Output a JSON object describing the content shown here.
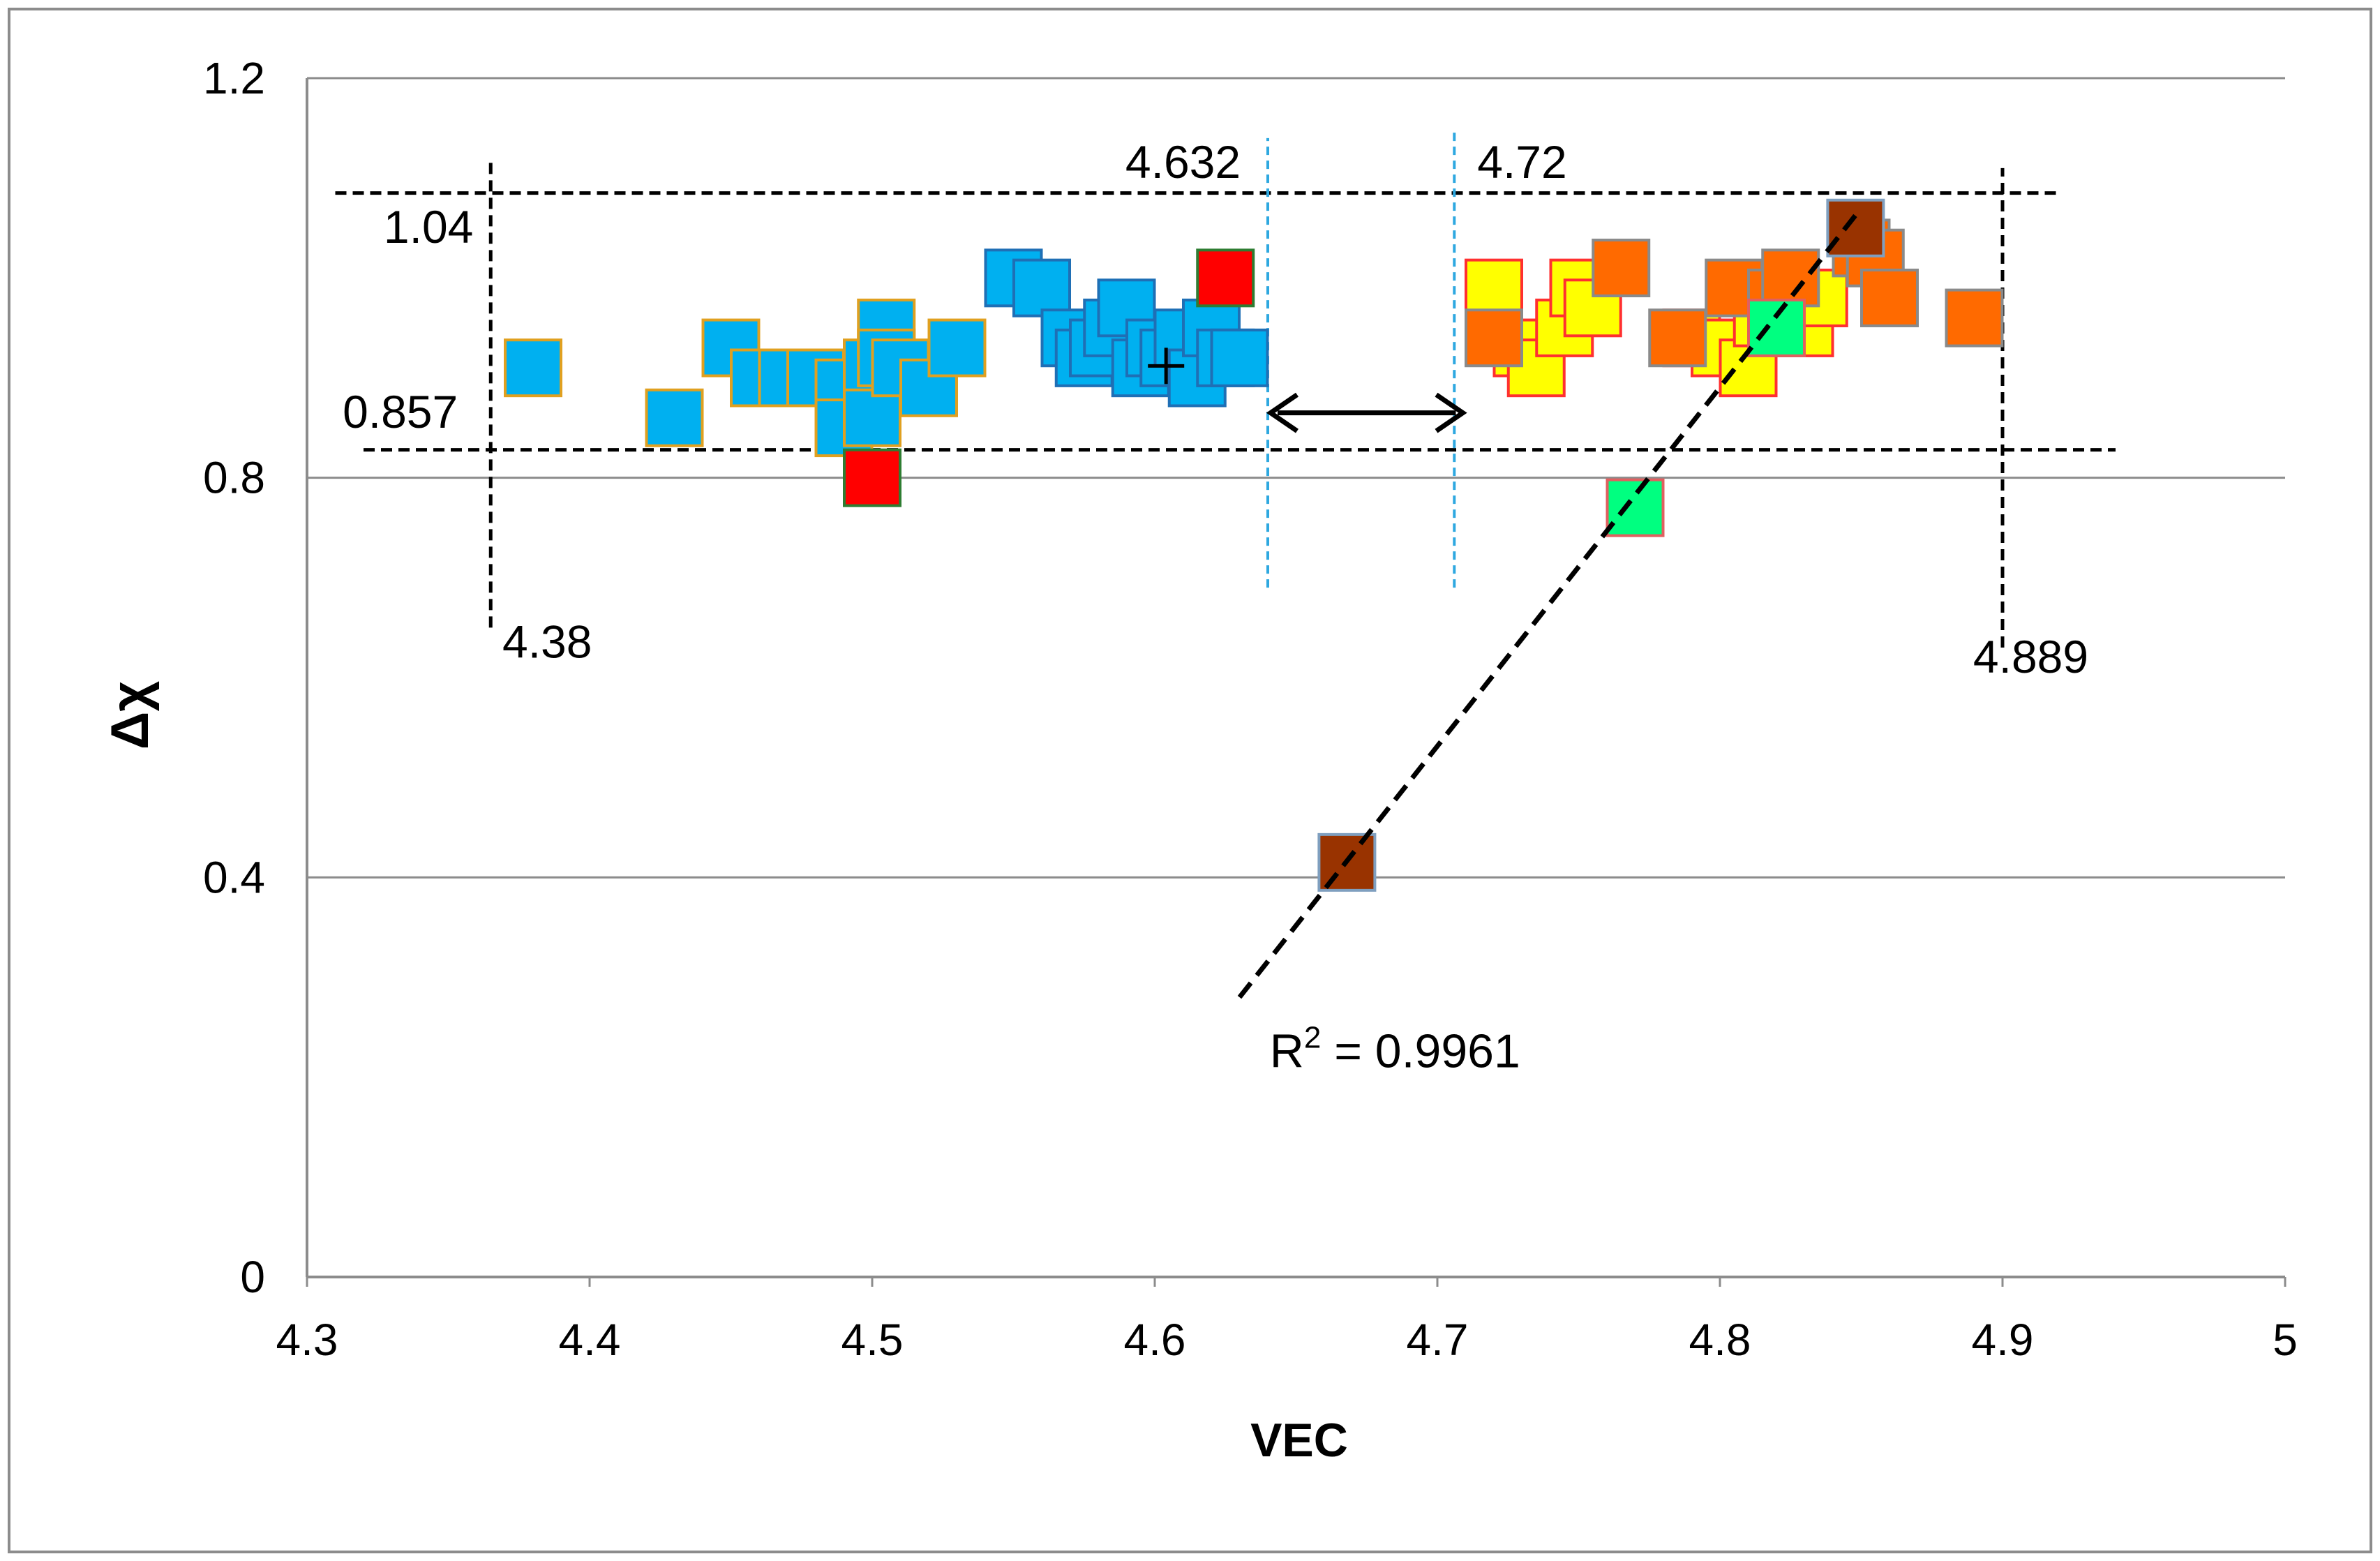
{
  "chart_data": {
    "type": "scatter",
    "title": "",
    "xlabel": "VEC",
    "ylabel": "Δχ",
    "xlim": [
      4.3,
      5
    ],
    "ylim": [
      0,
      1.2
    ],
    "x_ticks": [
      "4.3",
      "4.4",
      "4.5",
      "4.6",
      "4.7",
      "4.8",
      "4.9",
      "5"
    ],
    "y_ticks": [
      "0",
      "0.4",
      "0.8",
      "1.2"
    ],
    "grid": "horizontal",
    "legend": "none",
    "series": [
      {
        "color": "#00b0f0",
        "border": "#e0a020",
        "points": [
          [
            4.38,
            0.91
          ],
          [
            4.43,
            0.86
          ],
          [
            4.45,
            0.93
          ],
          [
            4.46,
            0.9
          ],
          [
            4.47,
            0.9
          ],
          [
            4.48,
            0.9
          ],
          [
            4.49,
            0.89
          ],
          [
            4.49,
            0.85
          ],
          [
            4.5,
            0.91
          ],
          [
            4.5,
            0.86
          ],
          [
            4.505,
            0.95
          ],
          [
            4.505,
            0.92
          ],
          [
            4.51,
            0.91
          ],
          [
            4.52,
            0.89
          ],
          [
            4.53,
            0.93
          ]
        ]
      },
      {
        "color": "#00b0f0",
        "border": "#1f6fb5",
        "points": [
          [
            4.55,
            1.0
          ],
          [
            4.56,
            0.99
          ],
          [
            4.57,
            0.94
          ],
          [
            4.575,
            0.92
          ],
          [
            4.58,
            0.93
          ],
          [
            4.585,
            0.95
          ],
          [
            4.59,
            0.97
          ],
          [
            4.595,
            0.91
          ],
          [
            4.6,
            0.93
          ],
          [
            4.605,
            0.92
          ],
          [
            4.61,
            0.94
          ],
          [
            4.615,
            0.9
          ],
          [
            4.62,
            0.95
          ],
          [
            4.625,
            0.92
          ],
          [
            4.63,
            0.92
          ]
        ]
      },
      {
        "color": "#ff0000",
        "border": "#2e7d32",
        "points": [
          [
            4.5,
            0.8
          ],
          [
            4.625,
            1.0
          ]
        ]
      },
      {
        "color": "#ffff00",
        "border": "#ff3030",
        "points": [
          [
            4.72,
            0.99
          ],
          [
            4.73,
            0.93
          ],
          [
            4.735,
            0.91
          ],
          [
            4.745,
            0.95
          ],
          [
            4.75,
            0.99
          ],
          [
            4.755,
            0.97
          ],
          [
            4.79,
            0.94
          ],
          [
            4.8,
            0.93
          ],
          [
            4.81,
            0.91
          ],
          [
            4.815,
            0.96
          ],
          [
            4.825,
            0.97
          ],
          [
            4.83,
            0.95
          ],
          [
            4.835,
            0.98
          ]
        ]
      },
      {
        "color": "#ff6a00",
        "border": "#8a8a8a",
        "points": [
          [
            4.72,
            0.94
          ],
          [
            4.765,
            1.01
          ],
          [
            4.785,
            0.94
          ],
          [
            4.805,
            0.99
          ],
          [
            4.82,
            0.98
          ],
          [
            4.825,
            1.0
          ],
          [
            4.85,
            1.03
          ],
          [
            4.855,
            1.02
          ],
          [
            4.86,
            0.98
          ],
          [
            4.89,
            0.96
          ]
        ]
      },
      {
        "color": "#00ff80",
        "border": "#e06060",
        "points": [
          [
            4.77,
            0.77
          ],
          [
            4.82,
            0.95
          ]
        ]
      },
      {
        "color": "#993300",
        "border": "#7f9fbf",
        "points": [
          [
            4.668,
            0.415
          ],
          [
            4.848,
            1.05
          ]
        ]
      }
    ],
    "centroid_marker": [
      4.604,
      0.912
    ],
    "trendline": {
      "from": [
        4.63,
        0.28
      ],
      "to": [
        4.85,
        1.07
      ],
      "label_base": "R",
      "label_sup": "2",
      "label_rest": " = 0.9961",
      "label_at": [
        4.685,
        0.21
      ]
    },
    "reference_lines": {
      "horizontal": [
        {
          "label": "1.04",
          "y": 1.085,
          "x_range": [
            4.31,
            4.92
          ],
          "label_at": [
            4.343,
            1.035
          ]
        },
        {
          "label": "0.857",
          "y": 0.828,
          "x_range": [
            4.32,
            4.94
          ],
          "label_at": [
            4.333,
            0.85
          ]
        }
      ],
      "vertical": [
        {
          "label": "4.38",
          "x": 4.365,
          "y_range": [
            0.65,
            1.12
          ],
          "label_at": [
            4.385,
            0.62
          ]
        },
        {
          "label": "4.889",
          "x": 4.9,
          "y_range": [
            0.63,
            1.11
          ],
          "label_at": [
            4.91,
            0.605
          ]
        }
      ],
      "boundaries": [
        {
          "label": "4.632",
          "x": 4.64,
          "y_range": [
            0.69,
            1.14
          ],
          "label_at": [
            4.61,
            1.1
          ]
        },
        {
          "label": "4.72",
          "x": 4.706,
          "y_range": [
            0.69,
            1.15
          ],
          "label_at": [
            4.73,
            1.1
          ]
        }
      ]
    },
    "gap_arrow": {
      "from": [
        4.64,
        0.865
      ],
      "to": [
        4.71,
        0.865
      ]
    }
  }
}
